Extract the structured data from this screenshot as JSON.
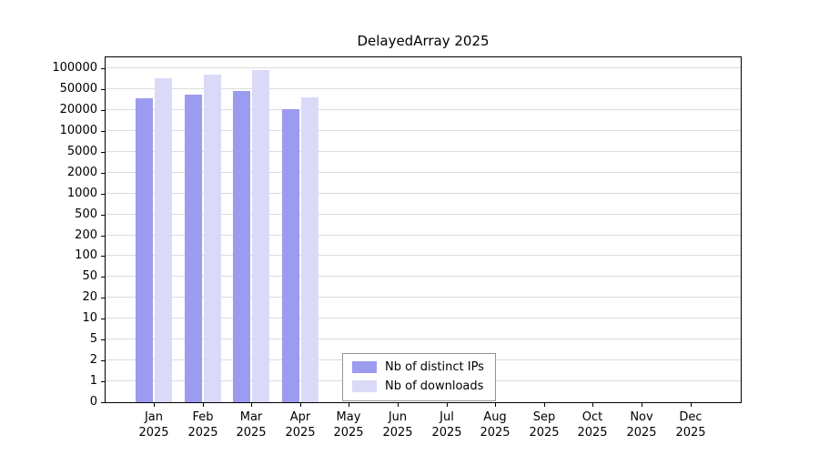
{
  "chart_data": {
    "type": "bar",
    "title": "DelayedArray 2025",
    "categories": [
      "Jan",
      "Feb",
      "Mar",
      "Apr",
      "May",
      "Jun",
      "Jul",
      "Aug",
      "Sep",
      "Oct",
      "Nov",
      "Dec"
    ],
    "year_label": "2025",
    "scale": "piecewise log-like (1-2-5 steps), ticks evenly spaced",
    "grid": true,
    "legend_position": "bottom-center-inside",
    "yticks": [
      0,
      1,
      2,
      5,
      10,
      20,
      50,
      100,
      200,
      500,
      1000,
      2000,
      5000,
      10000,
      20000,
      50000,
      100000
    ],
    "ylim": [
      0,
      100000
    ],
    "series": [
      {
        "name": "Nb of distinct IPs",
        "color": "#9b9bef",
        "values": [
          37000,
          42000,
          47000,
          21000,
          null,
          null,
          null,
          null,
          null,
          null,
          null,
          null
        ]
      },
      {
        "name": "Nb of downloads",
        "color": "#dadaf8",
        "values": [
          76000,
          85000,
          96000,
          37500,
          null,
          null,
          null,
          null,
          null,
          null,
          null,
          null
        ]
      }
    ]
  }
}
